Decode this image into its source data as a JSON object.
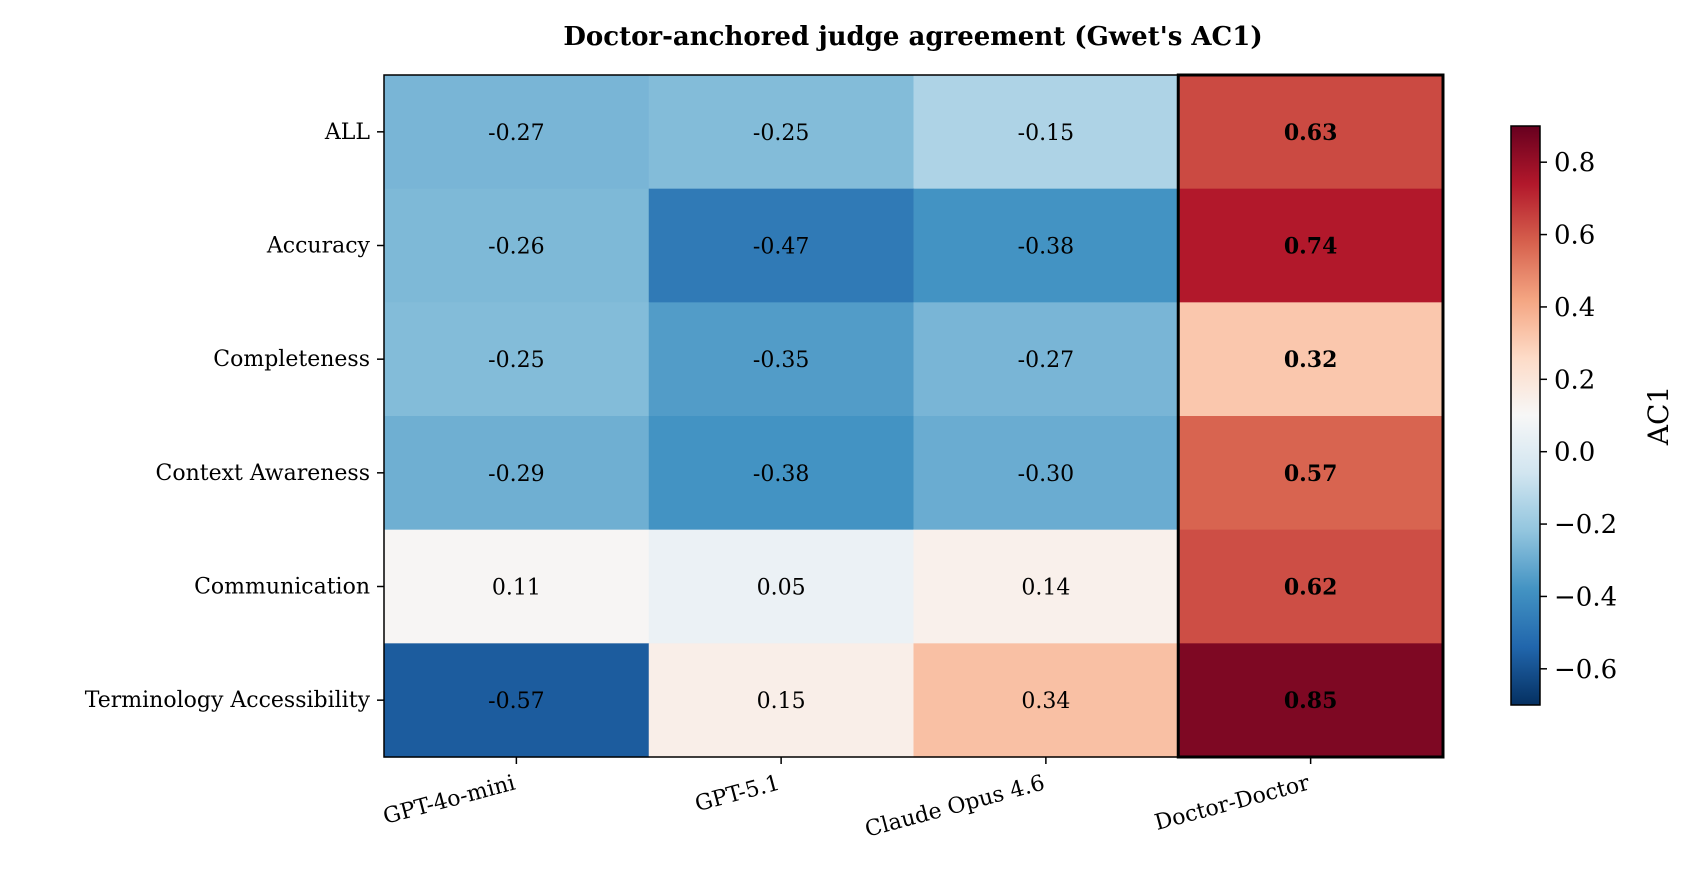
{
  "chart_data": {
    "type": "heatmap",
    "title": "Doctor-anchored judge agreement (Gwet's AC1)",
    "rows": [
      "ALL",
      "Accuracy",
      "Completeness",
      "Context Awareness",
      "Communication",
      "Terminology Accessibility"
    ],
    "columns": [
      "GPT-4o-mini",
      "GPT-5.1",
      "Claude Opus 4.6",
      "Doctor-Doctor"
    ],
    "values": [
      [
        -0.27,
        -0.25,
        -0.15,
        0.63
      ],
      [
        -0.26,
        -0.47,
        -0.38,
        0.74
      ],
      [
        -0.25,
        -0.35,
        -0.27,
        0.32
      ],
      [
        -0.29,
        -0.38,
        -0.3,
        0.57
      ],
      [
        0.11,
        0.05,
        0.14,
        0.62
      ],
      [
        -0.57,
        0.15,
        0.34,
        0.85
      ]
    ],
    "cell_labels": [
      [
        "-0.27",
        "-0.25",
        "-0.15",
        "0.63"
      ],
      [
        "-0.26",
        "-0.47",
        "-0.38",
        "0.74"
      ],
      [
        "-0.25",
        "-0.35",
        "-0.27",
        "0.32"
      ],
      [
        "-0.29",
        "-0.38",
        "-0.30",
        "0.57"
      ],
      [
        "0.11",
        "0.05",
        "0.14",
        "0.62"
      ],
      [
        "-0.57",
        "0.15",
        "0.34",
        "0.85"
      ]
    ],
    "bold_column": "Doctor-Doctor",
    "highlighted_column": "Doctor-Doctor",
    "colorbar": {
      "label": "AC1",
      "colormap": "RdBu_r",
      "range": [
        -0.7,
        0.9
      ],
      "ticks": [
        -0.6,
        -0.4,
        -0.2,
        0.0,
        0.2,
        0.4,
        0.6,
        0.8
      ],
      "tick_labels": [
        "−0.6",
        "−0.4",
        "−0.2",
        "0.0",
        "0.2",
        "0.4",
        "0.6",
        "0.8"
      ]
    }
  }
}
